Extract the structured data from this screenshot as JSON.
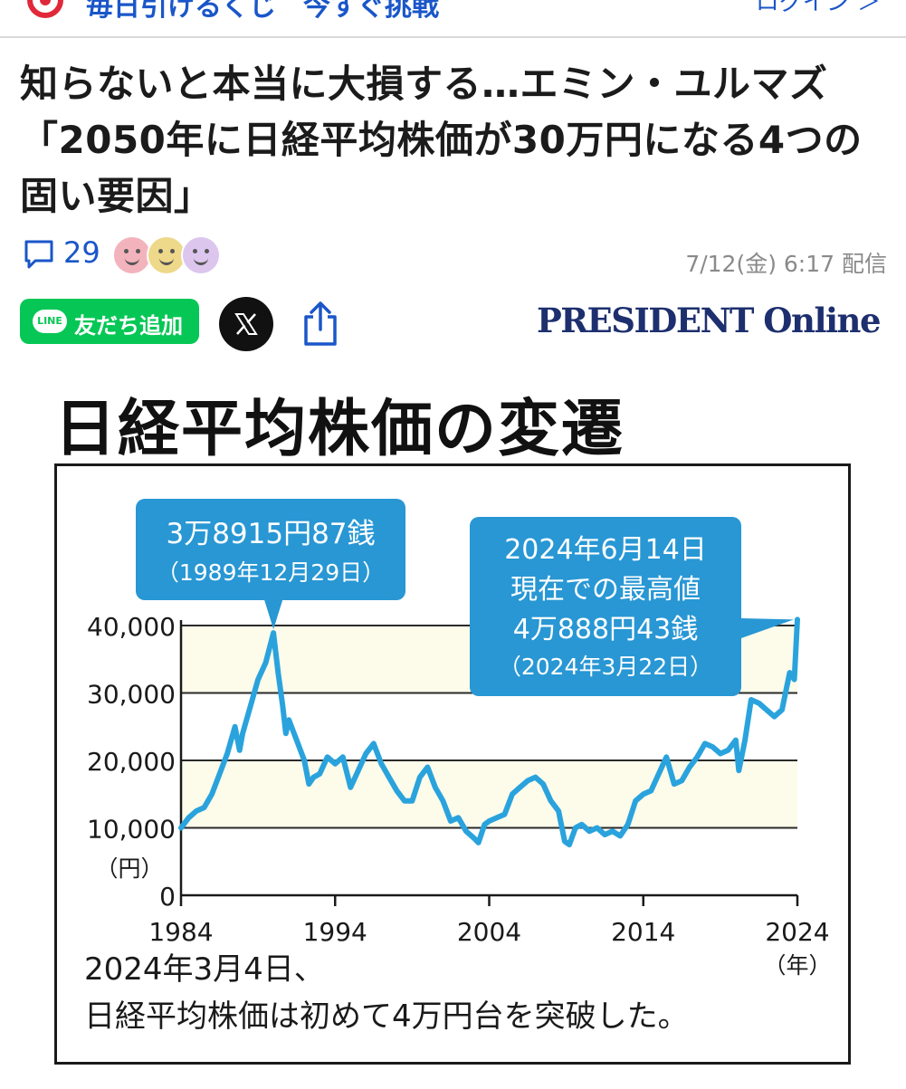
{
  "topbar": {
    "promo_text": "毎日引けるくじ　今すぐ挑戦",
    "login_label": "ログイン ＞"
  },
  "article": {
    "headline": "知らないと本当に大損する…エミン・ユルマズ「2050年に日経平均株価が30万円になる4つの固い要因」",
    "comment_count": "29",
    "reactions": [
      "happy-face",
      "smile-face",
      "content-face"
    ],
    "published": "7/12(金) 6:17 配信",
    "publisher": "PRESIDENT Online"
  },
  "share": {
    "line_logo_text": "LINE",
    "line_label": "友だち追加"
  },
  "colors": {
    "accent_blue": "#1a56c9",
    "line_green": "#06c755",
    "chart_line": "#2aa3dd",
    "callout_bg": "#2897d4",
    "band_fill": "#fdfbea"
  },
  "chart_data": {
    "type": "line",
    "title": "日経平均株価の変遷",
    "ylabel": "（円）",
    "xlabel": "（年）",
    "ylim": [
      0,
      40000
    ],
    "xlim": [
      1984,
      2024
    ],
    "y_ticks": [
      0,
      10000,
      20000,
      30000,
      40000
    ],
    "y_tick_labels": [
      "0",
      "10,000",
      "20,000",
      "30,000",
      "40,000"
    ],
    "x_ticks": [
      1984,
      1994,
      2004,
      2014,
      2024
    ],
    "x_tick_labels": [
      "1984",
      "1994",
      "2004",
      "2014",
      "2024"
    ],
    "grid": "horizontal",
    "series": [
      {
        "x": [
          1984.0,
          1984.5,
          1985.0,
          1985.5,
          1986.0,
          1986.5,
          1987.0,
          1987.5,
          1987.8,
          1988.0,
          1988.5,
          1989.0,
          1989.5,
          1990.0,
          1990.3,
          1990.6,
          1990.8,
          1991.0,
          1991.5,
          1992.0,
          1992.3,
          1992.6,
          1993.0,
          1993.5,
          1994.0,
          1994.5,
          1995.0,
          1995.5,
          1996.0,
          1996.5,
          1997.0,
          1997.5,
          1998.0,
          1998.5,
          1999.0,
          1999.5,
          2000.0,
          2000.5,
          2001.0,
          2001.5,
          2002.0,
          2002.5,
          2003.0,
          2003.3,
          2003.7,
          2004.0,
          2004.5,
          2005.0,
          2005.5,
          2006.0,
          2006.5,
          2007.0,
          2007.5,
          2008.0,
          2008.5,
          2008.9,
          2009.2,
          2009.6,
          2010.0,
          2010.5,
          2011.0,
          2011.5,
          2012.0,
          2012.5,
          2013.0,
          2013.5,
          2014.0,
          2014.5,
          2015.0,
          2015.5,
          2016.0,
          2016.5,
          2017.0,
          2017.5,
          2018.0,
          2018.5,
          2019.0,
          2019.5,
          2020.0,
          2020.2,
          2020.6,
          2021.0,
          2021.5,
          2022.0,
          2022.5,
          2023.0,
          2023.5,
          2023.8,
          2024.0
        ],
        "y": [
          10000,
          11500,
          12500,
          13000,
          15000,
          18000,
          21000,
          25000,
          21500,
          24000,
          28000,
          32000,
          34500,
          38916,
          33000,
          28000,
          24000,
          26000,
          23000,
          20000,
          16500,
          17500,
          18000,
          20500,
          19500,
          20500,
          16000,
          18500,
          21000,
          22500,
          19500,
          17500,
          15500,
          14000,
          14000,
          17500,
          19000,
          16000,
          14000,
          11000,
          11500,
          9500,
          8500,
          7800,
          10500,
          11000,
          11500,
          12000,
          15000,
          16000,
          17000,
          17500,
          16500,
          14000,
          12500,
          8000,
          7500,
          10000,
          10500,
          9500,
          10000,
          9000,
          9500,
          8800,
          10500,
          14000,
          15000,
          15500,
          18000,
          20500,
          16500,
          17000,
          19000,
          20500,
          22500,
          22000,
          21000,
          21500,
          23000,
          18500,
          23000,
          29000,
          28500,
          27500,
          26500,
          27500,
          33000,
          32000,
          40888
        ]
      }
    ],
    "annotations": [
      {
        "title": "3万8915円87銭",
        "subtitle": "（1989年12月29日）"
      },
      {
        "lines": [
          "2024年6月14日",
          "現在での最高値",
          "4万888円43銭",
          "（2024年3月22日）"
        ]
      }
    ],
    "caption_lines": [
      "2024年3月4日、",
      "日経平均株価は初めて4万円台を突破した。"
    ]
  }
}
